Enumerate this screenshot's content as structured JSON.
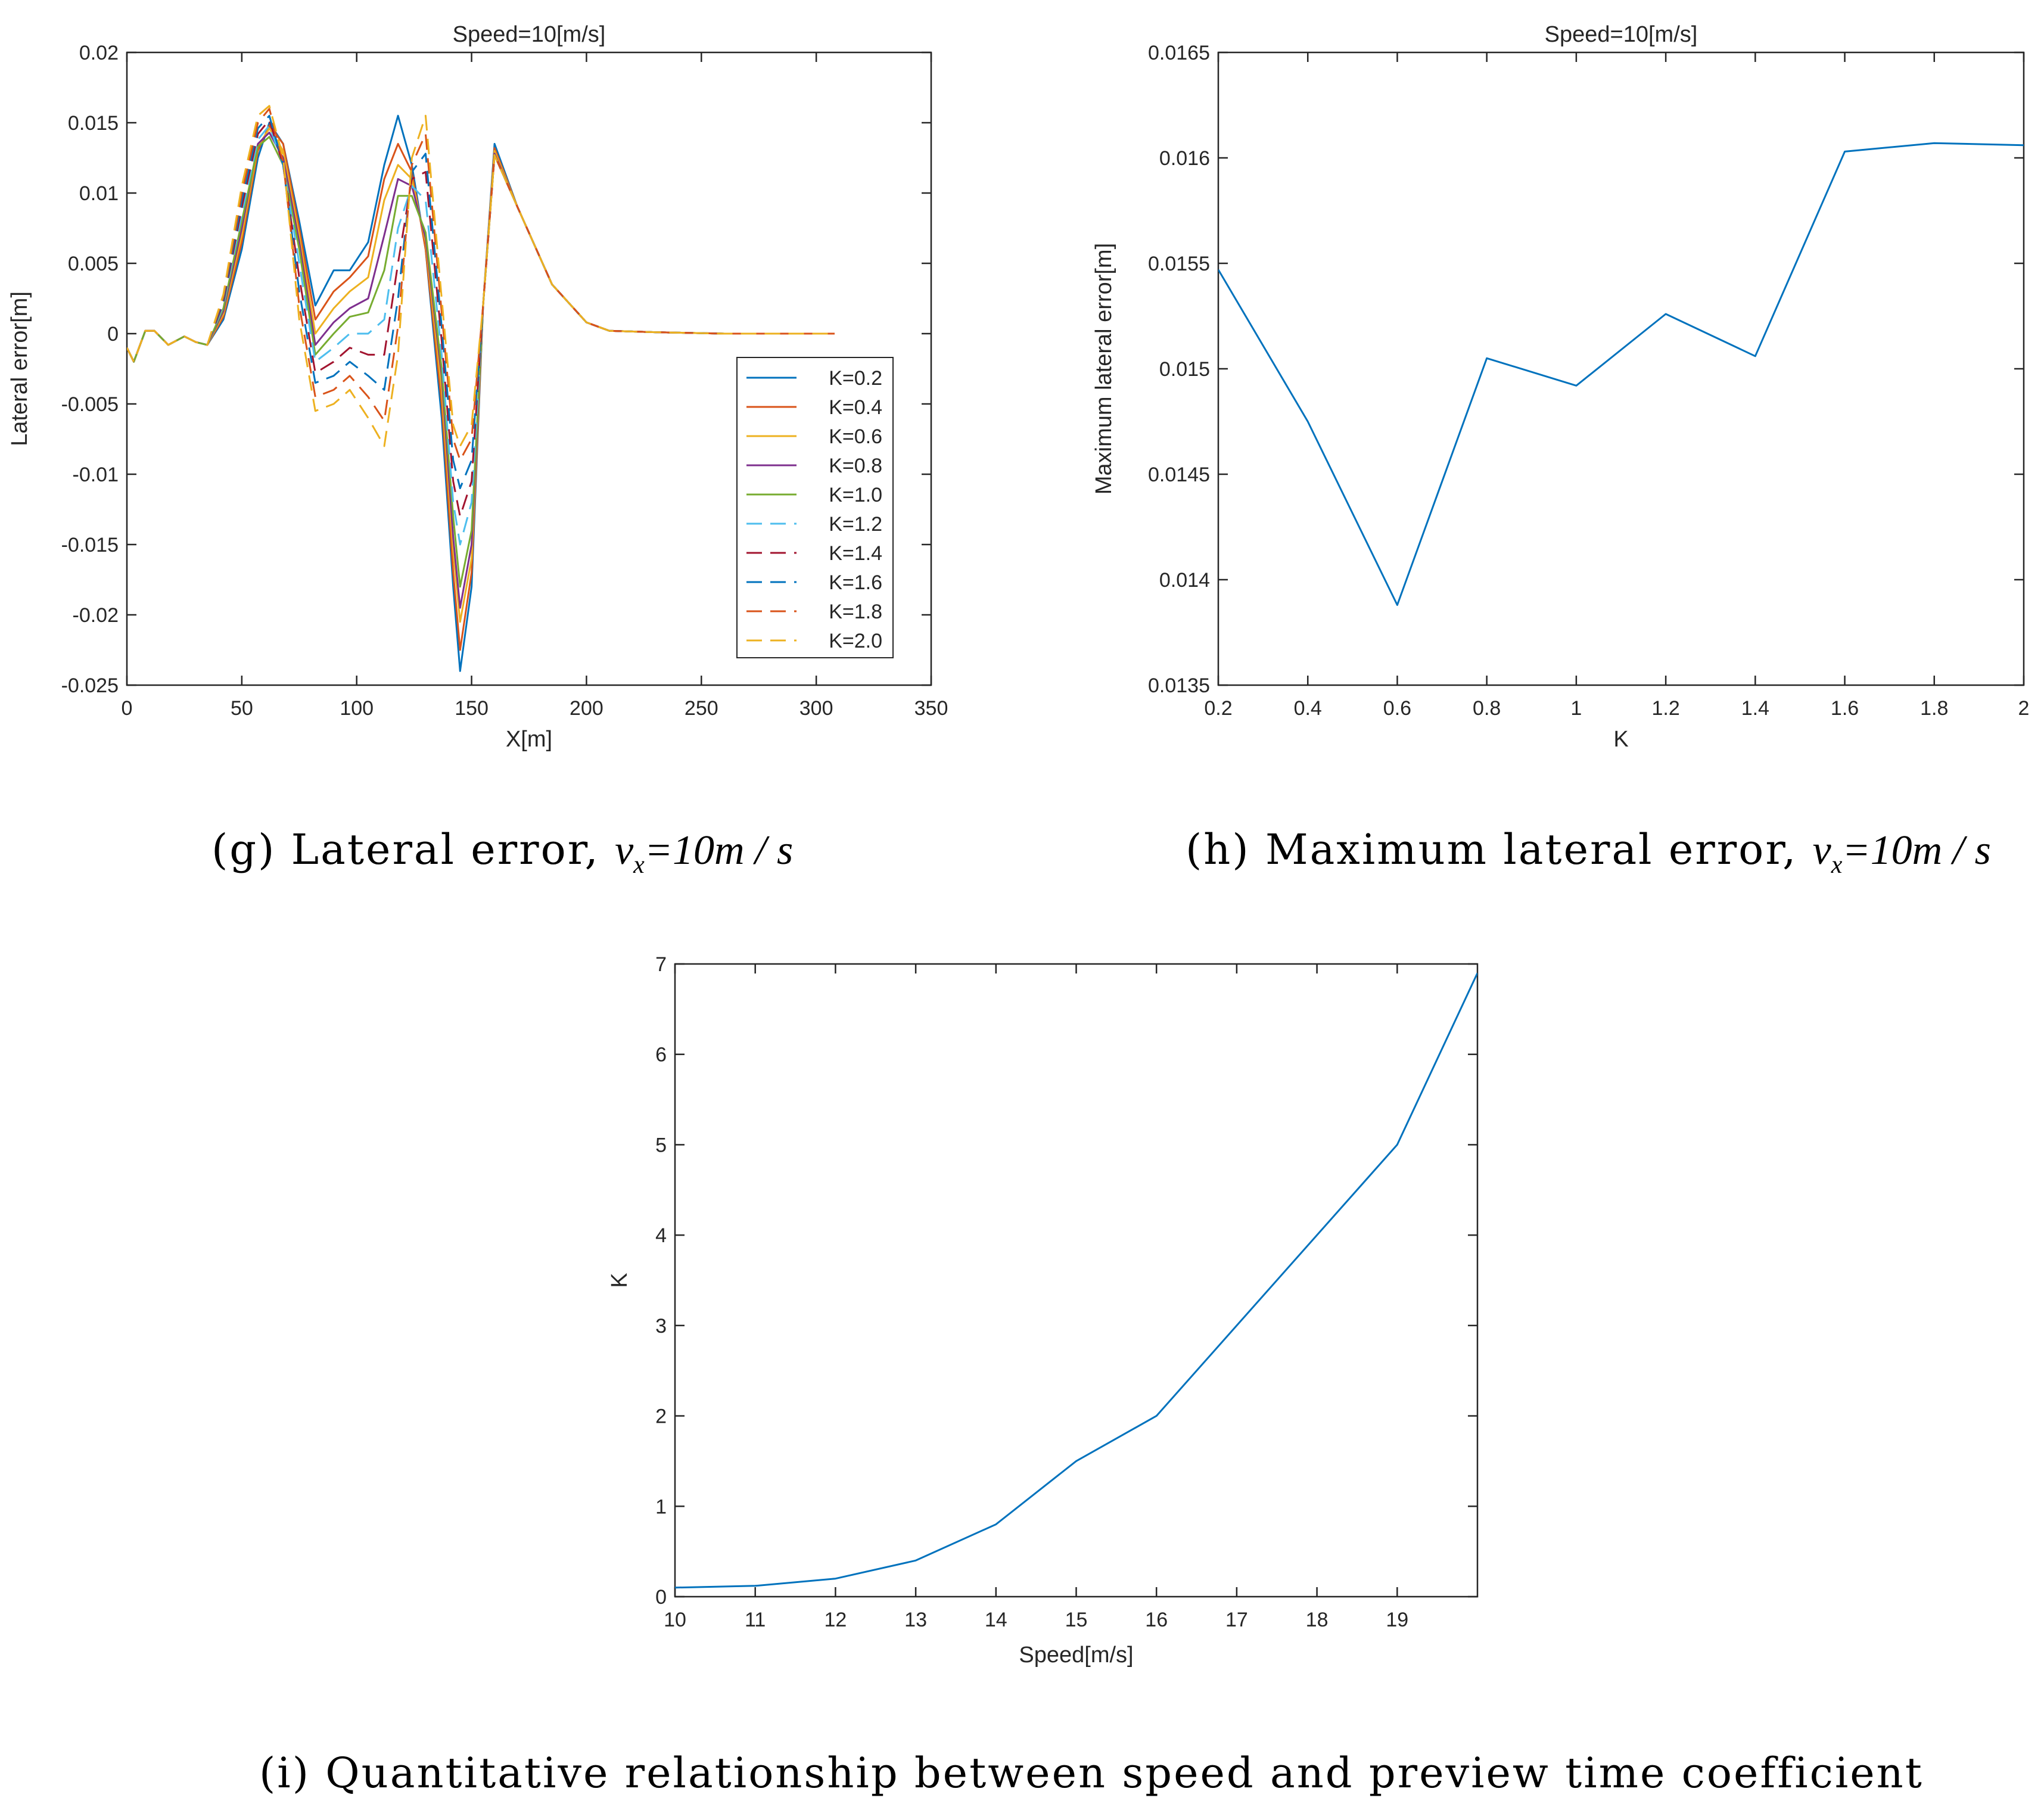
{
  "captions": {
    "g": {
      "label": "(g) Lateral error,",
      "math_var": "v",
      "math_sub": "x",
      "math_rest": "=10m / s"
    },
    "h": {
      "label": "(h) Maximum lateral error,",
      "math_var": "v",
      "math_sub": "x",
      "math_rest": "=10m / s"
    },
    "i": {
      "label": "(i) Quantitative relationship between speed and preview time coefficient"
    }
  },
  "chart_data": [
    {
      "id": "g",
      "type": "line",
      "title": "Speed=10[m/s]",
      "xlabel": "X[m]",
      "ylabel": "Lateral error[m]",
      "xlim": [
        0,
        350
      ],
      "ylim": [
        -0.025,
        0.02
      ],
      "xticks": [
        0,
        50,
        100,
        150,
        200,
        250,
        300,
        350
      ],
      "xtick_labels": [
        "0",
        "50",
        "100",
        "150",
        "200",
        "250",
        "300",
        "350"
      ],
      "yticks": [
        -0.025,
        -0.02,
        -0.015,
        -0.01,
        -0.005,
        0,
        0.005,
        0.01,
        0.015,
        0.02
      ],
      "ytick_labels": [
        "-0.025",
        "-0.02",
        "-0.015",
        "-0.01",
        "-0.005",
        "0",
        "0.005",
        "0.01",
        "0.015",
        "0.02"
      ],
      "grid": false,
      "legend": "right",
      "series": [
        {
          "name": "K=0.2",
          "color": "#0072BD",
          "dash": "solid",
          "x": [
            0,
            3,
            8,
            12,
            18,
            25,
            30,
            35,
            42,
            50,
            57,
            62,
            68,
            75,
            82,
            90,
            97,
            105,
            112,
            118,
            124,
            130,
            137,
            142,
            145,
            150,
            155,
            160,
            170,
            185,
            200,
            210,
            230,
            260,
            308
          ],
          "y": [
            -0.001,
            -0.002,
            0.0002,
            0.0002,
            -0.0008,
            -0.0002,
            -0.0006,
            -0.0008,
            0.001,
            0.006,
            0.0125,
            0.015,
            0.0135,
            0.008,
            0.002,
            0.0045,
            0.0045,
            0.0065,
            0.012,
            0.0155,
            0.012,
            0.006,
            -0.006,
            -0.018,
            -0.024,
            -0.018,
            0.002,
            0.0135,
            0.009,
            0.0035,
            0.0008,
            0.0002,
            0.0001,
            0.0,
            0.0
          ]
        },
        {
          "name": "K=0.4",
          "color": "#D95319",
          "dash": "solid",
          "x": [
            0,
            3,
            8,
            12,
            18,
            25,
            30,
            35,
            42,
            50,
            57,
            62,
            68,
            75,
            82,
            90,
            97,
            105,
            112,
            118,
            124,
            130,
            137,
            142,
            145,
            150,
            155,
            160,
            170,
            185,
            200,
            210,
            230,
            260,
            308
          ],
          "y": [
            -0.001,
            -0.002,
            0.0002,
            0.0002,
            -0.0008,
            -0.0002,
            -0.0006,
            -0.0008,
            0.0012,
            0.0065,
            0.013,
            0.0148,
            0.0135,
            0.0075,
            0.001,
            0.003,
            0.004,
            0.0055,
            0.011,
            0.0135,
            0.0115,
            0.006,
            -0.005,
            -0.017,
            -0.0225,
            -0.017,
            0.002,
            0.0132,
            0.009,
            0.0035,
            0.0008,
            0.0002,
            0.0001,
            0.0,
            0.0
          ]
        },
        {
          "name": "K=0.6",
          "color": "#EDB120",
          "dash": "solid",
          "x": [
            0,
            3,
            8,
            12,
            18,
            25,
            30,
            35,
            42,
            50,
            57,
            62,
            68,
            75,
            82,
            90,
            97,
            105,
            112,
            118,
            124,
            130,
            137,
            142,
            145,
            150,
            155,
            160,
            170,
            185,
            200,
            210,
            230,
            260,
            308
          ],
          "y": [
            -0.001,
            -0.002,
            0.0002,
            0.0002,
            -0.0008,
            -0.0002,
            -0.0006,
            -0.0008,
            0.0014,
            0.007,
            0.0133,
            0.0146,
            0.013,
            0.007,
            0.0,
            0.0018,
            0.003,
            0.004,
            0.0095,
            0.012,
            0.011,
            0.0065,
            -0.004,
            -0.0155,
            -0.0205,
            -0.016,
            0.002,
            0.013,
            0.009,
            0.0035,
            0.0008,
            0.0002,
            0.0001,
            0.0,
            0.0
          ]
        },
        {
          "name": "K=0.8",
          "color": "#7E2F8E",
          "dash": "solid",
          "x": [
            0,
            3,
            8,
            12,
            18,
            25,
            30,
            35,
            42,
            50,
            57,
            62,
            68,
            75,
            82,
            90,
            97,
            105,
            112,
            118,
            124,
            130,
            137,
            142,
            145,
            150,
            155,
            160,
            170,
            185,
            200,
            210,
            230,
            260,
            308
          ],
          "y": [
            -0.001,
            -0.002,
            0.0002,
            0.0002,
            -0.0008,
            -0.0002,
            -0.0006,
            -0.0008,
            0.0016,
            0.0075,
            0.0135,
            0.0143,
            0.0125,
            0.0065,
            -0.0008,
            0.0008,
            0.0018,
            0.0025,
            0.007,
            0.011,
            0.0105,
            0.0068,
            -0.003,
            -0.0145,
            -0.0195,
            -0.015,
            0.002,
            0.0128,
            0.009,
            0.0035,
            0.0008,
            0.0002,
            0.0001,
            0.0,
            0.0
          ]
        },
        {
          "name": "K=1.0",
          "color": "#77AC30",
          "dash": "solid",
          "x": [
            0,
            3,
            8,
            12,
            18,
            25,
            30,
            35,
            42,
            50,
            57,
            62,
            68,
            75,
            82,
            90,
            97,
            105,
            112,
            118,
            124,
            130,
            137,
            142,
            145,
            150,
            155,
            160,
            170,
            185,
            200,
            210,
            230,
            260,
            308
          ],
          "y": [
            -0.001,
            -0.002,
            0.0002,
            0.0002,
            -0.0008,
            -0.0002,
            -0.0006,
            -0.0008,
            0.0018,
            0.008,
            0.0133,
            0.014,
            0.012,
            0.006,
            -0.0015,
            0.0,
            0.0012,
            0.0015,
            0.0045,
            0.0098,
            0.0098,
            0.0072,
            -0.0025,
            -0.013,
            -0.018,
            -0.014,
            0.002,
            0.0127,
            0.009,
            0.0035,
            0.0008,
            0.0002,
            0.0001,
            0.0,
            0.0
          ]
        },
        {
          "name": "K=1.2",
          "color": "#4DBEEE",
          "dash": "dashed",
          "x": [
            0,
            3,
            8,
            12,
            18,
            25,
            30,
            35,
            42,
            50,
            57,
            62,
            68,
            75,
            82,
            90,
            97,
            105,
            112,
            118,
            124,
            130,
            137,
            142,
            145,
            150,
            155,
            160,
            170,
            185,
            200,
            210,
            230,
            260,
            308
          ],
          "y": [
            -0.001,
            -0.002,
            0.0002,
            0.0002,
            -0.0008,
            -0.0002,
            -0.0006,
            -0.0008,
            0.002,
            0.0085,
            0.0138,
            0.0148,
            0.012,
            0.005,
            -0.002,
            -0.001,
            0.0,
            0.0,
            0.001,
            0.0075,
            0.0105,
            0.0095,
            -0.0015,
            -0.012,
            -0.015,
            -0.012,
            0.002,
            0.0127,
            0.009,
            0.0035,
            0.0008,
            0.0002,
            0.0001,
            0.0,
            0.0
          ]
        },
        {
          "name": "K=1.4",
          "color": "#A2142F",
          "dash": "dashed",
          "x": [
            0,
            3,
            8,
            12,
            18,
            25,
            30,
            35,
            42,
            50,
            57,
            62,
            68,
            75,
            82,
            90,
            97,
            105,
            112,
            118,
            124,
            130,
            137,
            142,
            145,
            150,
            155,
            160,
            170,
            185,
            200,
            210,
            230,
            260,
            308
          ],
          "y": [
            -0.001,
            -0.002,
            0.0002,
            0.0002,
            -0.0008,
            -0.0002,
            -0.0006,
            -0.0008,
            0.0022,
            0.009,
            0.0142,
            0.0152,
            0.012,
            0.004,
            -0.0028,
            -0.002,
            -0.001,
            -0.0015,
            -0.0015,
            0.005,
            0.011,
            0.0115,
            -0.0005,
            -0.0105,
            -0.013,
            -0.0105,
            0.002,
            0.0127,
            0.009,
            0.0035,
            0.0008,
            0.0002,
            0.0001,
            0.0,
            0.0
          ]
        },
        {
          "name": "K=1.6",
          "color": "#0072BD",
          "dash": "dashed",
          "x": [
            0,
            3,
            8,
            12,
            18,
            25,
            30,
            35,
            42,
            50,
            57,
            62,
            68,
            75,
            82,
            90,
            97,
            105,
            112,
            118,
            124,
            130,
            137,
            142,
            145,
            150,
            155,
            160,
            170,
            185,
            200,
            210,
            230,
            260,
            308
          ],
          "y": [
            -0.001,
            -0.002,
            0.0002,
            0.0002,
            -0.0008,
            -0.0002,
            -0.0006,
            -0.0008,
            0.0024,
            0.0095,
            0.0146,
            0.0155,
            0.012,
            0.003,
            -0.0035,
            -0.003,
            -0.002,
            -0.003,
            -0.004,
            0.0025,
            0.0115,
            0.0128,
            0.0005,
            -0.009,
            -0.011,
            -0.009,
            0.002,
            0.0127,
            0.009,
            0.0035,
            0.0008,
            0.0002,
            0.0001,
            0.0,
            0.0
          ]
        },
        {
          "name": "K=1.8",
          "color": "#D95319",
          "dash": "dashed",
          "x": [
            0,
            3,
            8,
            12,
            18,
            25,
            30,
            35,
            42,
            50,
            57,
            62,
            68,
            75,
            82,
            90,
            97,
            105,
            112,
            118,
            124,
            130,
            137,
            142,
            145,
            150,
            155,
            160,
            170,
            185,
            200,
            210,
            230,
            260,
            308
          ],
          "y": [
            -0.001,
            -0.002,
            0.0002,
            0.0002,
            -0.0008,
            -0.0002,
            -0.0006,
            -0.0008,
            0.0026,
            0.01,
            0.015,
            0.016,
            0.0122,
            0.002,
            -0.0045,
            -0.004,
            -0.003,
            -0.0045,
            -0.0062,
            0.0005,
            0.012,
            0.0142,
            0.0015,
            -0.0075,
            -0.009,
            -0.0075,
            0.002,
            0.0127,
            0.009,
            0.0035,
            0.0008,
            0.0002,
            0.0001,
            0.0,
            0.0
          ]
        },
        {
          "name": "K=2.0",
          "color": "#EDB120",
          "dash": "dashed",
          "x": [
            0,
            3,
            8,
            12,
            18,
            25,
            30,
            35,
            42,
            50,
            57,
            62,
            68,
            75,
            82,
            90,
            97,
            105,
            112,
            118,
            124,
            130,
            137,
            142,
            145,
            150,
            155,
            160,
            170,
            185,
            200,
            210,
            230,
            260,
            308
          ],
          "y": [
            -0.001,
            -0.002,
            0.0002,
            0.0002,
            -0.0008,
            -0.0002,
            -0.0006,
            -0.0008,
            0.0028,
            0.0105,
            0.0155,
            0.0162,
            0.0125,
            0.001,
            -0.0055,
            -0.005,
            -0.004,
            -0.006,
            -0.008,
            -0.0015,
            0.0125,
            0.0155,
            0.0025,
            -0.0065,
            -0.008,
            -0.0065,
            0.002,
            0.0127,
            0.009,
            0.0035,
            0.0008,
            0.0002,
            0.0001,
            0.0,
            0.0
          ]
        }
      ]
    },
    {
      "id": "h",
      "type": "line",
      "title": "Speed=10[m/s]",
      "xlabel": "K",
      "ylabel": "Maximum lateral error[m]",
      "xlim": [
        0.2,
        2
      ],
      "ylim": [
        0.0135,
        0.0165
      ],
      "xticks": [
        0.2,
        0.4,
        0.6,
        0.8,
        1,
        1.2,
        1.4,
        1.6,
        1.8,
        2
      ],
      "xtick_labels": [
        "0.2",
        "0.4",
        "0.6",
        "0.8",
        "1",
        "1.2",
        "1.4",
        "1.6",
        "1.8",
        "2"
      ],
      "yticks": [
        0.0135,
        0.014,
        0.0145,
        0.015,
        0.0155,
        0.016,
        0.0165
      ],
      "ytick_labels": [
        "0.0135",
        "0.014",
        "0.0145",
        "0.015",
        "0.0155",
        "0.016",
        "0.0165"
      ],
      "grid": false,
      "series": [
        {
          "color": "#0072BD",
          "dash": "solid",
          "x": [
            0.2,
            0.4,
            0.6,
            0.8,
            1.0,
            1.2,
            1.4,
            1.6,
            1.8,
            2.0
          ],
          "y": [
            0.01547,
            0.01475,
            0.01388,
            0.01505,
            0.01492,
            0.01526,
            0.01506,
            0.01603,
            0.01607,
            0.01606
          ]
        }
      ]
    },
    {
      "id": "i",
      "type": "line",
      "title": "",
      "xlabel": "Speed[m/s]",
      "ylabel": "K",
      "xlim": [
        10,
        20
      ],
      "ylim": [
        0,
        7
      ],
      "xticks": [
        10,
        11,
        12,
        13,
        14,
        15,
        16,
        17,
        18,
        19
      ],
      "xtick_labels": [
        "10",
        "11",
        "12",
        "13",
        "14",
        "15",
        "16",
        "17",
        "18",
        "19"
      ],
      "yticks": [
        0,
        1,
        2,
        3,
        4,
        5,
        6,
        7
      ],
      "ytick_labels": [
        "0",
        "1",
        "2",
        "3",
        "4",
        "5",
        "6",
        "7"
      ],
      "grid": false,
      "series": [
        {
          "color": "#0072BD",
          "dash": "solid",
          "x": [
            10,
            11,
            12,
            13,
            14,
            15,
            16,
            17,
            18,
            19,
            20
          ],
          "y": [
            0.1,
            0.12,
            0.2,
            0.4,
            0.8,
            1.5,
            2.0,
            3.0,
            4.0,
            5.0,
            6.9
          ]
        }
      ]
    }
  ]
}
